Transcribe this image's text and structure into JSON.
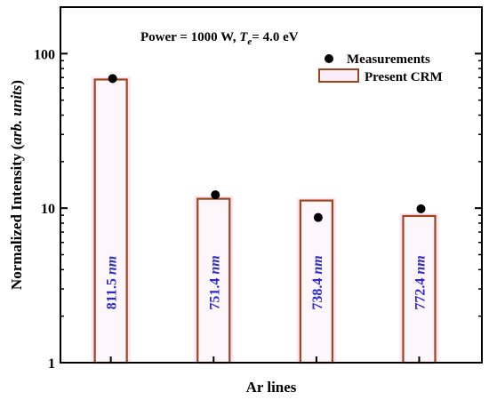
{
  "chart_data": {
    "type": "bar",
    "categories": [
      "811.5 nm",
      "751.4 nm",
      "738.4 nm",
      "772.4 nm"
    ],
    "category_values": [
      "811.5",
      "751.4",
      "738.4",
      "772.4"
    ],
    "category_unit": "nm",
    "series": [
      {
        "name": "Present CRM",
        "type": "bar",
        "values": [
          68,
          11.5,
          11.2,
          8.9
        ]
      },
      {
        "name": "Measurements",
        "type": "scatter",
        "values": [
          69,
          12.2,
          8.7,
          9.9
        ]
      }
    ],
    "annotation": {
      "prefix": "Power = 1000 W, ",
      "te_symbol": "T",
      "te_sub": "e",
      "te_suffix": "= 4.0 eV"
    },
    "xlabel": "Ar lines",
    "ylabel_main": "Normalized Intensity (",
    "ylabel_italic": "arb. units",
    "ylabel_close": ")",
    "y_scale": "log",
    "ylim": [
      1,
      200
    ],
    "yticks": [
      1,
      10,
      100
    ],
    "ytick_labels": [
      "1",
      "10",
      "100"
    ],
    "legend_position": "top-right",
    "colors": {
      "bar_edge": "#a0441b",
      "bar_glow": "#f5d0ee",
      "label": "#2a2ad0",
      "marker": "#000000"
    }
  }
}
